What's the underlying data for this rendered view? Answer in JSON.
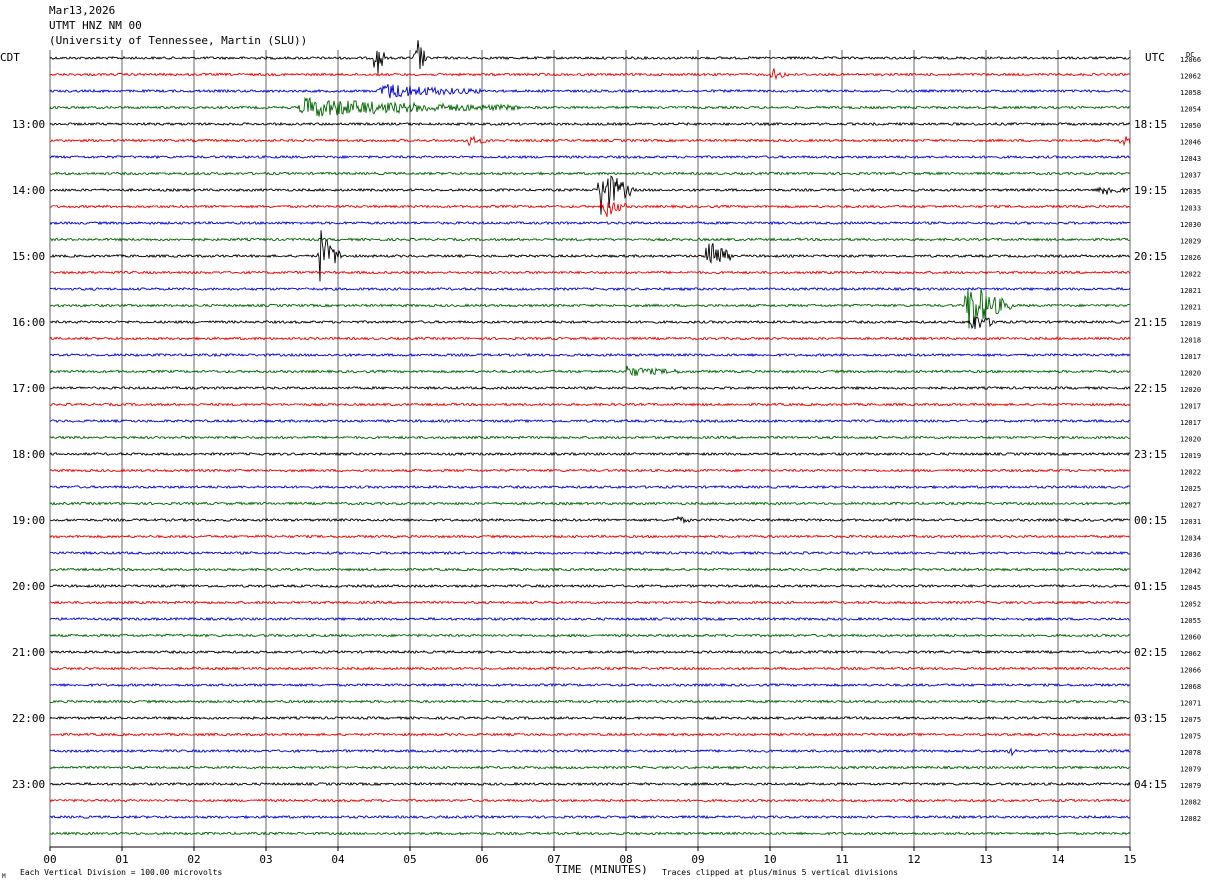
{
  "header": {
    "date": "Mar13,2026",
    "station": "UTMT HNZ NM 00",
    "network": "(University of Tennessee, Martin (SLU))",
    "left_tz": "CDT",
    "right_tz": "UTC",
    "dc_label": "DC"
  },
  "footer": {
    "scale_note": "Each Vertical Division =  100.00 microvolts",
    "xlabel": "TIME (MINUTES)",
    "clip_note": "Traces clipped at plus/minus 5 vertical divisions",
    "corner_mark": "M"
  },
  "colors": {
    "trace_cycle": [
      "#000000",
      "#ee0000",
      "#0000dd",
      "#006600"
    ],
    "grid": "#000000",
    "background": "#ffffff"
  },
  "chart_data": {
    "type": "line",
    "title": "UTMT HNZ NM 00",
    "xlabel": "TIME (MINUTES)",
    "xlim": [
      0,
      15
    ],
    "x_ticks": [
      "00",
      "01",
      "02",
      "03",
      "04",
      "05",
      "06",
      "07",
      "08",
      "09",
      "10",
      "11",
      "12",
      "13",
      "14",
      "15"
    ],
    "trace_count": 48,
    "trace_interval_minutes": 15,
    "left_hour_labels": [
      "13:00",
      "14:00",
      "15:00",
      "16:00",
      "17:00",
      "18:00",
      "19:00",
      "20:00",
      "21:00",
      "22:00",
      "23:00"
    ],
    "right_hour_labels": [
      "18:15",
      "19:15",
      "20:15",
      "21:15",
      "22:15",
      "23:15",
      "00:15",
      "01:15",
      "02:15",
      "03:15",
      "04:15"
    ],
    "dc_offsets": [
      "12066",
      "12062",
      "12058",
      "12054",
      "12050",
      "12046",
      "12043",
      "12037",
      "12035",
      "12033",
      "12030",
      "12029",
      "12026",
      "12022",
      "12021",
      "12021",
      "12019",
      "12018",
      "12017",
      "12020",
      "12020",
      "12017",
      "12017",
      "12020",
      "12019",
      "12022",
      "12025",
      "12027",
      "12031",
      "12034",
      "12036",
      "12042",
      "12045",
      "12052",
      "12055",
      "12060",
      "12062",
      "12066",
      "12068",
      "12071",
      "12075",
      "12075",
      "12078",
      "12079",
      "12079",
      "12082",
      "12082"
    ],
    "events": [
      {
        "trace": 0,
        "minute": 4.55,
        "amplitude": 3.5,
        "duration": 0.1
      },
      {
        "trace": 0,
        "minute": 5.1,
        "amplitude": 3.0,
        "duration": 0.15
      },
      {
        "trace": 1,
        "minute": 10.05,
        "amplitude": 0.8,
        "duration": 0.2
      },
      {
        "trace": 2,
        "minute": 4.6,
        "amplitude": 1.0,
        "duration": 1.4
      },
      {
        "trace": 3,
        "minute": 3.5,
        "amplitude": 1.2,
        "duration": 3.0
      },
      {
        "trace": 5,
        "minute": 5.8,
        "amplitude": 0.6,
        "duration": 0.3
      },
      {
        "trace": 5,
        "minute": 14.9,
        "amplitude": 1.0,
        "duration": 0.2
      },
      {
        "trace": 8,
        "minute": 7.65,
        "amplitude": 3.5,
        "duration": 0.45
      },
      {
        "trace": 8,
        "minute": 14.6,
        "amplitude": 0.8,
        "duration": 0.4
      },
      {
        "trace": 9,
        "minute": 7.7,
        "amplitude": 1.6,
        "duration": 0.3
      },
      {
        "trace": 12,
        "minute": 3.75,
        "amplitude": 3.5,
        "duration": 0.3
      },
      {
        "trace": 12,
        "minute": 9.15,
        "amplitude": 3.0,
        "duration": 0.3
      },
      {
        "trace": 15,
        "minute": 12.75,
        "amplitude": 3.5,
        "duration": 0.6
      },
      {
        "trace": 16,
        "minute": 12.8,
        "amplitude": 1.2,
        "duration": 0.4
      },
      {
        "trace": 19,
        "minute": 8.0,
        "amplitude": 0.6,
        "duration": 0.8
      },
      {
        "trace": 28,
        "minute": 8.7,
        "amplitude": 0.5,
        "duration": 0.2
      },
      {
        "trace": 42,
        "minute": 13.35,
        "amplitude": 0.5,
        "duration": 0.1
      }
    ]
  }
}
